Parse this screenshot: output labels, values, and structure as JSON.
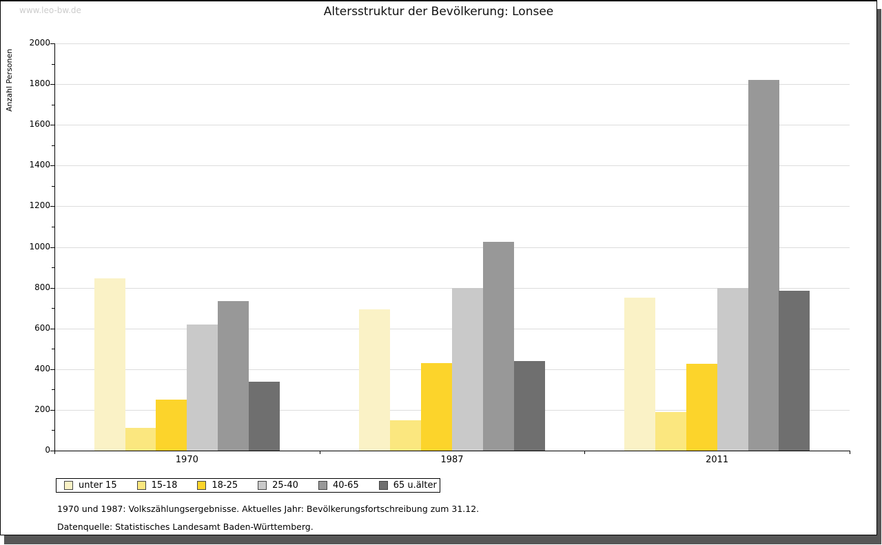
{
  "watermark": "www.leo-bw.de",
  "header": {
    "title": "Altersstruktur der Bevölkerung: Lonsee"
  },
  "chart_data": {
    "type": "bar",
    "title": "Altersstruktur der Bevölkerung: Lonsee",
    "xlabel": "",
    "ylabel": "Anzahl Personen",
    "ylim": [
      0,
      2000
    ],
    "ytick_step": 200,
    "minor_tick_step": 100,
    "grid": true,
    "legend_position": "bottom-left",
    "categories": [
      "1970",
      "1987",
      "2011"
    ],
    "series": [
      {
        "name": "unter 15",
        "color": "#FAF2C6",
        "values": [
          845,
          695,
          750
        ]
      },
      {
        "name": "15-18",
        "color": "#FBE77F",
        "values": [
          110,
          150,
          190
        ]
      },
      {
        "name": "18-25",
        "color": "#FCD42B",
        "values": [
          250,
          430,
          425
        ]
      },
      {
        "name": "25-40",
        "color": "#C9C9C9",
        "values": [
          620,
          800,
          800
        ]
      },
      {
        "name": "40-65",
        "color": "#989898",
        "values": [
          735,
          1025,
          1820
        ]
      },
      {
        "name": "65 u.älter",
        "color": "#6F6F6F",
        "values": [
          340,
          440,
          785
        ]
      }
    ]
  },
  "footnotes": {
    "line1": "1970 und 1987: Volkszählungsergebnisse. Aktuelles Jahr: Bevölkerungsfortschreibung zum 31.12.",
    "line2": "Datenquelle: Statistisches Landesamt Baden-Württemberg."
  }
}
